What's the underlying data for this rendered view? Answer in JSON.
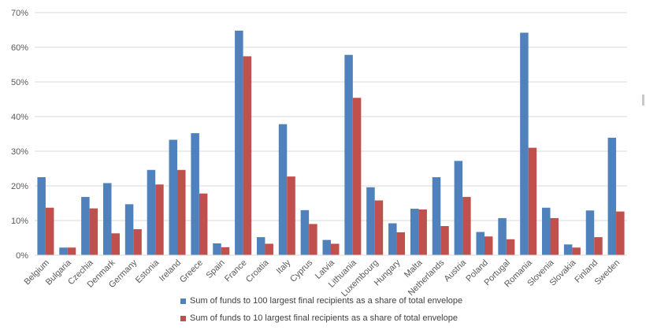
{
  "chart_data": {
    "type": "bar",
    "title": "",
    "xlabel": "",
    "ylabel": "",
    "ylim": [
      0,
      70
    ],
    "yticks": [
      "0%",
      "10%",
      "20%",
      "30%",
      "40%",
      "50%",
      "60%",
      "70%"
    ],
    "grid": true,
    "legend_position": "bottom",
    "categories": [
      "Belgium",
      "Bulgaria",
      "Czechia",
      "Denmark",
      "Germany",
      "Estonia",
      "Ireland",
      "Greece",
      "Spain",
      "France",
      "Croatia",
      "Italy",
      "Cyprus",
      "Latvia",
      "Lithuania",
      "Luxembourg",
      "Hungary",
      "Malta",
      "Netherlands",
      "Austria",
      "Poland",
      "Portugal",
      "Romania",
      "Slovenia",
      "Slovakia",
      "Finland",
      "Sweden"
    ],
    "series": [
      {
        "name": "Sum of funds to 100 largest final recipients as a share of total envelope",
        "color": "#4f81bd",
        "values": [
          22.5,
          2.2,
          16.8,
          20.8,
          14.7,
          24.6,
          33.3,
          35.2,
          3.4,
          64.8,
          5.2,
          37.8,
          13.0,
          4.4,
          57.8,
          19.6,
          9.2,
          13.4,
          22.5,
          27.2,
          6.7,
          10.7,
          64.2,
          13.7,
          3.1,
          12.9,
          33.9
        ]
      },
      {
        "name": "Sum of funds to 10 largest final recipients as a share of total envelope",
        "color": "#c0504d",
        "values": [
          13.7,
          2.2,
          13.5,
          6.3,
          7.5,
          20.4,
          24.6,
          17.8,
          2.3,
          57.4,
          3.3,
          22.7,
          9.0,
          3.3,
          45.4,
          15.8,
          6.6,
          13.2,
          8.4,
          16.8,
          5.4,
          4.6,
          31.0,
          10.7,
          2.2,
          5.2,
          12.6
        ]
      }
    ]
  }
}
